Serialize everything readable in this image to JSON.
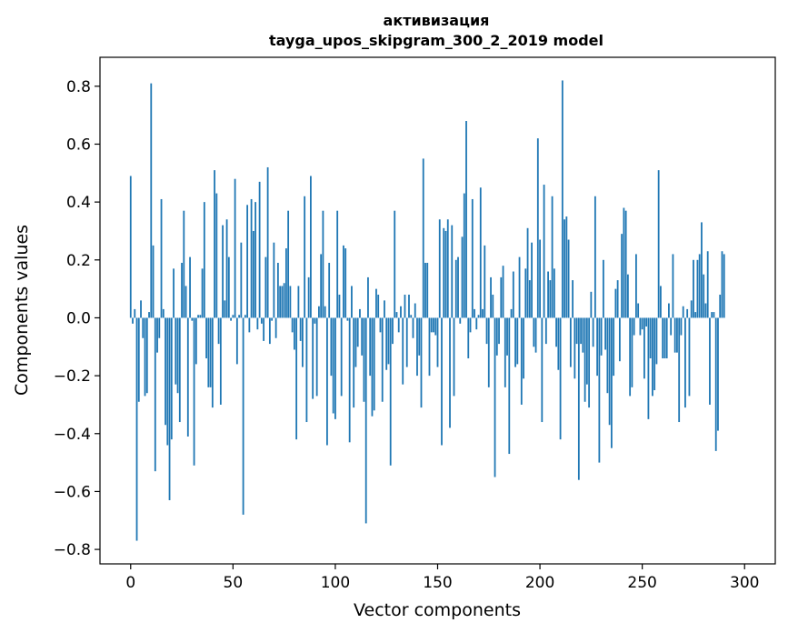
{
  "chart_data": {
    "type": "bar",
    "title": "активизация",
    "subtitle": "tayga_upos_skipgram_300_2_2019 model",
    "xlabel": "Vector components",
    "ylabel": "Components values",
    "xlim": [
      -15,
      315
    ],
    "ylim": [
      -0.85,
      0.9
    ],
    "xticks": [
      0,
      50,
      100,
      150,
      200,
      250,
      300
    ],
    "yticks": [
      -0.8,
      -0.6,
      -0.4,
      -0.2,
      0.0,
      0.2,
      0.4,
      0.6,
      0.8
    ],
    "ytick_labels": [
      "−0.8",
      "−0.6",
      "−0.4",
      "−0.2",
      "0.0",
      "0.2",
      "0.4",
      "0.6",
      "0.8"
    ],
    "xtick_labels": [
      "0",
      "50",
      "100",
      "150",
      "200",
      "250",
      "300"
    ],
    "grid": false,
    "bar_color": "#1f77b4",
    "values": [
      0.49,
      -0.02,
      0.03,
      -0.77,
      -0.29,
      0.06,
      -0.07,
      -0.27,
      -0.26,
      0.02,
      0.81,
      0.25,
      -0.53,
      -0.12,
      -0.07,
      0.41,
      0.03,
      -0.37,
      -0.44,
      -0.63,
      -0.42,
      0.17,
      -0.23,
      -0.26,
      -0.36,
      0.19,
      0.37,
      0.11,
      -0.41,
      0.21,
      -0.01,
      -0.51,
      -0.16,
      0.01,
      0.01,
      0.17,
      0.4,
      -0.14,
      -0.24,
      -0.24,
      -0.31,
      0.51,
      0.43,
      -0.09,
      -0.3,
      0.32,
      0.06,
      0.34,
      0.21,
      -0.01,
      0.01,
      0.48,
      -0.16,
      0.01,
      0.26,
      -0.68,
      0.01,
      0.39,
      -0.05,
      0.41,
      0.3,
      0.4,
      -0.04,
      0.47,
      -0.02,
      -0.08,
      0.21,
      0.52,
      -0.09,
      -0.01,
      0.26,
      -0.07,
      0.19,
      0.11,
      0.11,
      0.12,
      0.24,
      0.37,
      0.11,
      -0.05,
      -0.11,
      -0.42,
      0.11,
      -0.08,
      -0.17,
      0.42,
      -0.36,
      0.14,
      0.49,
      -0.28,
      -0.02,
      -0.27,
      0.04,
      0.22,
      0.37,
      0.04,
      -0.44,
      0.19,
      -0.2,
      -0.33,
      -0.35,
      0.37,
      0.08,
      -0.27,
      0.25,
      0.24,
      -0.01,
      -0.43,
      0.11,
      -0.31,
      -0.17,
      -0.1,
      0.03,
      -0.13,
      -0.29,
      -0.71,
      0.14,
      -0.2,
      -0.34,
      -0.32,
      0.1,
      0.08,
      -0.05,
      -0.29,
      0.06,
      -0.18,
      -0.16,
      -0.51,
      -0.09,
      0.37,
      0.02,
      -0.05,
      0.04,
      -0.23,
      0.08,
      -0.17,
      0.08,
      0.01,
      -0.07,
      0.05,
      -0.2,
      -0.13,
      -0.31,
      0.55,
      0.19,
      0.19,
      -0.2,
      -0.05,
      -0.05,
      -0.06,
      -0.17,
      0.34,
      -0.44,
      0.31,
      0.3,
      0.34,
      -0.38,
      0.32,
      -0.27,
      0.2,
      0.21,
      -0.02,
      0.28,
      0.43,
      0.68,
      -0.14,
      -0.05,
      0.41,
      0.03,
      -0.04,
      0.01,
      0.45,
      0.03,
      0.25,
      -0.09,
      -0.24,
      0.14,
      0.08,
      -0.55,
      -0.13,
      -0.09,
      0.14,
      0.18,
      -0.24,
      -0.13,
      -0.47,
      0.03,
      0.16,
      -0.17,
      -0.16,
      0.21,
      -0.3,
      -0.21,
      0.17,
      0.31,
      0.13,
      0.26,
      -0.1,
      -0.12,
      0.62,
      0.27,
      -0.36,
      0.46,
      -0.09,
      0.16,
      0.13,
      0.42,
      0.17,
      -0.1,
      -0.18,
      -0.42,
      0.82,
      0.34,
      0.35,
      0.27,
      -0.17,
      0.13,
      -0.21,
      -0.09,
      -0.56,
      -0.09,
      -0.12,
      -0.29,
      -0.23,
      -0.31,
      0.09,
      -0.1,
      0.42,
      -0.2,
      -0.5,
      -0.13,
      0.2,
      -0.11,
      -0.26,
      -0.37,
      -0.45,
      -0.2,
      0.1,
      0.13,
      -0.15,
      0.29,
      0.38,
      0.37,
      0.15,
      -0.27,
      -0.24,
      -0.06,
      0.22,
      0.05,
      -0.06,
      -0.04,
      -0.21,
      -0.03,
      -0.35,
      -0.14,
      -0.27,
      -0.25,
      -0.16,
      0.51,
      0.11,
      -0.14,
      -0.14,
      -0.14,
      0.05,
      -0.06,
      0.22,
      -0.12,
      -0.12,
      -0.36,
      -0.06,
      0.04,
      -0.31,
      0.03,
      -0.27,
      0.06,
      0.2,
      0.02,
      0.2,
      0.22,
      0.33,
      0.15,
      0.05,
      0.23,
      -0.3,
      0.02,
      0.02,
      -0.46,
      -0.39,
      0.08,
      0.23,
      0.22
    ]
  }
}
